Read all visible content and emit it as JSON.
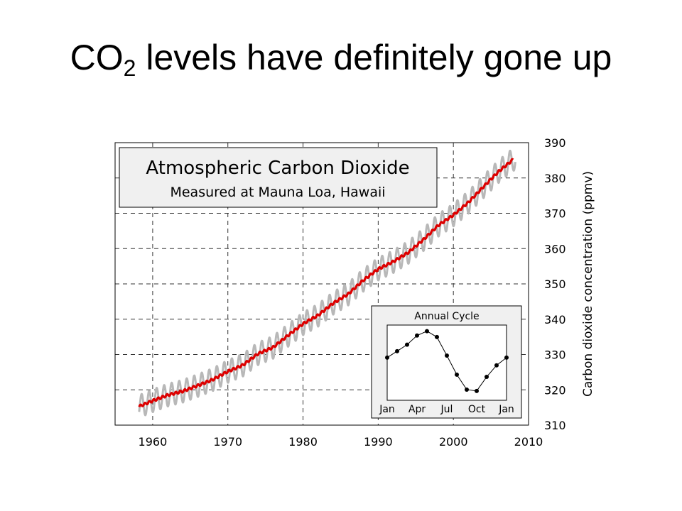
{
  "slide": {
    "title_prefix": "CO",
    "title_subscript": "2",
    "title_suffix": " levels have definitely gone up"
  },
  "chart_data": [
    {
      "type": "line",
      "title": "Atmospheric Carbon Dioxide",
      "subtitle": "Measured at Mauna Loa, Hawaii",
      "xlabel": "",
      "ylabel": "Carbon dioxide concentration (ppmv)",
      "xlim": [
        1955,
        2010
      ],
      "ylim": [
        310,
        390
      ],
      "x_ticks": [
        "1960",
        "1970",
        "1980",
        "1990",
        "2000",
        "2010"
      ],
      "y_ticks": [
        "310",
        "320",
        "330",
        "340",
        "350",
        "360",
        "370",
        "380",
        "390"
      ],
      "y_axis_side": "right",
      "grid": true,
      "seasonal_amplitude": 3.2,
      "colors": {
        "monthly": "#b8b8b8",
        "trend": "#dd0000",
        "title_box": "#f0f0f0"
      },
      "series": [
        {
          "x": [
            1958.2,
            1960,
            1962,
            1964,
            1966,
            1968,
            1970,
            1972,
            1974,
            1976,
            1978,
            1980,
            1982,
            1984,
            1986,
            1988,
            1990,
            1992,
            1994,
            1996,
            1998,
            2000,
            2002,
            2004,
            2006,
            2008
          ],
          "values": [
            315.3,
            316.9,
            318.5,
            319.6,
            321.2,
            322.9,
            325.2,
            327.0,
            330.2,
            332.0,
            335.4,
            338.7,
            341.1,
            344.5,
            347.1,
            351.0,
            354.2,
            356.3,
            358.9,
            362.5,
            366.6,
            369.5,
            373.1,
            377.5,
            381.8,
            385.3
          ]
        }
      ]
    },
    {
      "type": "line",
      "title": "Annual Cycle",
      "x_ticks": [
        "Jan",
        "Apr",
        "Jul",
        "Oct",
        "Jan"
      ],
      "grid": false,
      "series": [
        {
          "x": [
            1,
            2,
            3,
            4,
            5,
            6,
            7,
            8,
            9,
            10,
            11,
            12,
            13
          ],
          "values": [
            0.0,
            0.63,
            1.27,
            2.17,
            2.6,
            2.02,
            0.2,
            -1.68,
            -3.15,
            -3.28,
            -1.9,
            -0.76,
            0.0
          ]
        }
      ]
    }
  ]
}
